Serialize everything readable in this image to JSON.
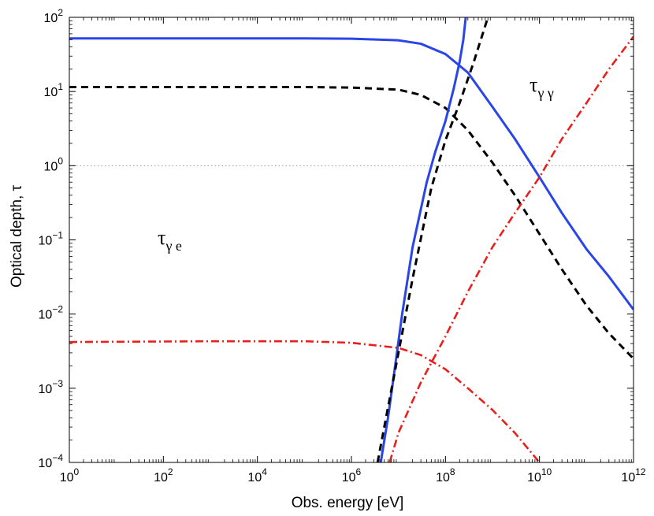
{
  "chart_data": {
    "type": "line",
    "title": "",
    "xlabel": "Obs. energy [eV]",
    "ylabel": "Optical depth, τ",
    "xscale": "log",
    "yscale": "log",
    "xlim": [
      1,
      1000000000000
    ],
    "ylim": [
      0.0001,
      100
    ],
    "grid": false,
    "legend": "none",
    "x_ticks": [
      {
        "value": 1,
        "base": "10",
        "exp": "0"
      },
      {
        "value": 100,
        "base": "10",
        "exp": "2"
      },
      {
        "value": 10000,
        "base": "10",
        "exp": "4"
      },
      {
        "value": 1000000,
        "base": "10",
        "exp": "6"
      },
      {
        "value": 100000000,
        "base": "10",
        "exp": "8"
      },
      {
        "value": 10000000000,
        "base": "10",
        "exp": "10"
      },
      {
        "value": 1000000000000,
        "base": "10",
        "exp": "12"
      }
    ],
    "y_ticks": [
      {
        "value": 0.0001,
        "base": "10",
        "exp": "−4"
      },
      {
        "value": 0.001,
        "base": "10",
        "exp": "−3"
      },
      {
        "value": 0.01,
        "base": "10",
        "exp": "−2"
      },
      {
        "value": 0.1,
        "base": "10",
        "exp": "−1"
      },
      {
        "value": 1,
        "base": "10",
        "exp": "0"
      },
      {
        "value": 10,
        "base": "10",
        "exp": "1"
      },
      {
        "value": 100,
        "base": "10",
        "exp": "2"
      }
    ],
    "reference_line": {
      "y": 1,
      "color": "#999999",
      "style": "dotted"
    },
    "annotations": [
      {
        "name": "tau-gamma-e",
        "text": "τ",
        "sub": "γ e",
        "x": 10000,
        "y": 0.13
      },
      {
        "name": "tau-gamma-gamma",
        "text": "τ",
        "sub": "γ γ",
        "x": 1000000000000,
        "y": 15
      }
    ],
    "series": [
      {
        "name": "gamma-e blue solid",
        "color": "#2a45e8",
        "style": "solid",
        "points": [
          [
            1,
            52
          ],
          [
            1000,
            52
          ],
          [
            100000,
            52
          ],
          [
            1000000,
            51.5
          ],
          [
            10000000,
            49
          ],
          [
            30000000,
            44
          ],
          [
            100000000,
            32
          ],
          [
            300000000,
            18
          ],
          [
            1000000000,
            6.2
          ],
          [
            3000000000,
            2.3
          ],
          [
            10000000000,
            0.7
          ],
          [
            30000000000,
            0.23
          ],
          [
            100000000000,
            0.075
          ],
          [
            300000000000,
            0.032
          ],
          [
            1000000000000,
            0.0115
          ]
        ]
      },
      {
        "name": "gamma-e black dashed",
        "color": "#000000",
        "style": "dashed",
        "points": [
          [
            1,
            11.5
          ],
          [
            1000,
            11.5
          ],
          [
            100000,
            11.5
          ],
          [
            1000000,
            11.3
          ],
          [
            10000000,
            10.6
          ],
          [
            30000000,
            9
          ],
          [
            100000000,
            6
          ],
          [
            300000000,
            3
          ],
          [
            1000000000,
            1.1
          ],
          [
            3000000000,
            0.4
          ],
          [
            10000000000,
            0.12
          ],
          [
            30000000000,
            0.04
          ],
          [
            100000000000,
            0.013
          ],
          [
            300000000000,
            0.0055
          ],
          [
            1000000000000,
            0.0025
          ]
        ]
      },
      {
        "name": "gamma-e red dash-dot",
        "color": "#e8201c",
        "style": "dashdot",
        "points": [
          [
            1,
            0.0042
          ],
          [
            1000,
            0.0043
          ],
          [
            100000,
            0.0043
          ],
          [
            1000000,
            0.0041
          ],
          [
            10000000,
            0.0035
          ],
          [
            30000000,
            0.0028
          ],
          [
            100000000,
            0.0018
          ],
          [
            300000000,
            0.001
          ],
          [
            1000000000,
            0.00051
          ],
          [
            3000000000,
            0.00025
          ],
          [
            10000000000,
            0.0001
          ]
        ]
      },
      {
        "name": "gamma-gamma blue solid",
        "color": "#2a45e8",
        "style": "solid",
        "points": [
          [
            4200000,
            0.0001
          ],
          [
            6000000,
            0.0004
          ],
          [
            8000000,
            0.0015
          ],
          [
            12000000,
            0.01
          ],
          [
            20000000,
            0.08
          ],
          [
            40000000,
            0.6
          ],
          [
            60000000,
            1.5
          ],
          [
            100000000,
            4
          ],
          [
            150000000,
            11
          ],
          [
            200000000,
            25
          ],
          [
            240000000,
            50
          ],
          [
            270000000,
            100
          ]
        ]
      },
      {
        "name": "gamma-gamma black dashed",
        "color": "#000000",
        "style": "dashed",
        "points": [
          [
            3600000,
            0.0001
          ],
          [
            5000000,
            0.0003
          ],
          [
            10000000,
            0.003
          ],
          [
            20000000,
            0.03
          ],
          [
            50000000,
            0.5
          ],
          [
            100000000,
            2.2
          ],
          [
            200000000,
            7
          ],
          [
            400000000,
            25
          ],
          [
            800000000,
            100
          ]
        ]
      },
      {
        "name": "gamma-gamma red dash-dot",
        "color": "#e8201c",
        "style": "dashdot",
        "points": [
          [
            6500000,
            0.0001
          ],
          [
            10000000,
            0.00025
          ],
          [
            30000000,
            0.0012
          ],
          [
            100000000,
            0.005
          ],
          [
            300000000,
            0.02
          ],
          [
            1000000000,
            0.08
          ],
          [
            3000000000,
            0.23
          ],
          [
            10000000000,
            0.7
          ],
          [
            30000000000,
            2.3
          ],
          [
            100000000000,
            7
          ],
          [
            300000000000,
            20
          ],
          [
            1000000000000,
            55
          ]
        ]
      }
    ]
  }
}
